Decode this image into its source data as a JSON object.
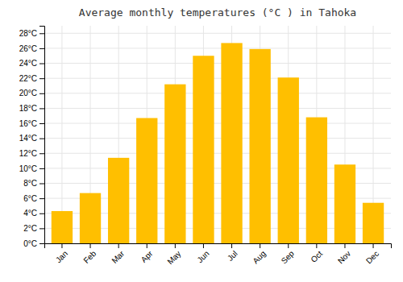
{
  "chart_data": {
    "type": "bar",
    "title": "Average monthly temperatures (°C ) in Tahoka",
    "categories": [
      "Jan",
      "Feb",
      "Mar",
      "Apr",
      "May",
      "Jun",
      "Jul",
      "Aug",
      "Sep",
      "Oct",
      "Nov",
      "Dec"
    ],
    "values": [
      4.3,
      6.7,
      11.4,
      16.7,
      21.2,
      25.0,
      26.7,
      25.9,
      22.1,
      16.8,
      10.5,
      5.4
    ],
    "color": "#FFBF00",
    "ylim": [
      0,
      29
    ],
    "yticks": [
      {
        "value": 0,
        "label": "0°C"
      },
      {
        "value": 2,
        "label": "2°C"
      },
      {
        "value": 4,
        "label": "4°C"
      },
      {
        "value": 6,
        "label": "6°C"
      },
      {
        "value": 8,
        "label": "8°C"
      },
      {
        "value": 10,
        "label": "10°C"
      },
      {
        "value": 12,
        "label": "12°C"
      },
      {
        "value": 14,
        "label": "14°C"
      },
      {
        "value": 16,
        "label": "16°C"
      },
      {
        "value": 18,
        "label": "18°C"
      },
      {
        "value": 20,
        "label": "20°C"
      },
      {
        "value": 22,
        "label": "22°C"
      },
      {
        "value": 24,
        "label": "24°C"
      },
      {
        "value": 26,
        "label": "26°C"
      },
      {
        "value": 28,
        "label": "28°C"
      }
    ],
    "grid": true
  }
}
